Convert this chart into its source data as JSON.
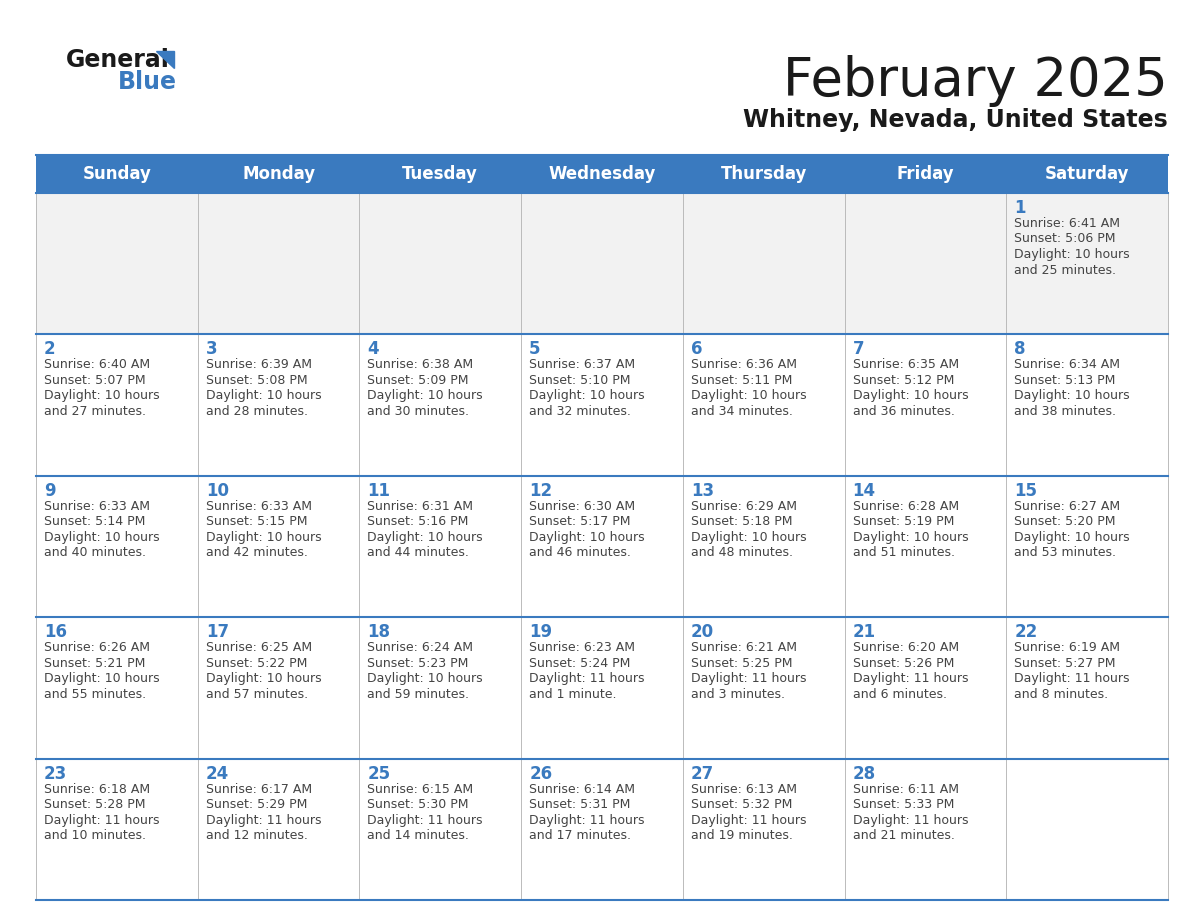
{
  "title": "February 2025",
  "subtitle": "Whitney, Nevada, United States",
  "header_color": "#3a7abf",
  "header_text_color": "#ffffff",
  "cell_bg_color": "#ffffff",
  "alt_cell_bg_color": "#f2f2f2",
  "border_color": "#3a7abf",
  "day_headers": [
    "Sunday",
    "Monday",
    "Tuesday",
    "Wednesday",
    "Thursday",
    "Friday",
    "Saturday"
  ],
  "title_color": "#1a1a1a",
  "subtitle_color": "#1a1a1a",
  "day_number_color": "#3a7abf",
  "cell_text_color": "#444444",
  "calendar": [
    [
      null,
      null,
      null,
      null,
      null,
      null,
      {
        "day": "1",
        "sunrise": "6:41 AM",
        "sunset": "5:06 PM",
        "daylight_line1": "10 hours",
        "daylight_line2": "and 25 minutes."
      }
    ],
    [
      {
        "day": "2",
        "sunrise": "6:40 AM",
        "sunset": "5:07 PM",
        "daylight_line1": "10 hours",
        "daylight_line2": "and 27 minutes."
      },
      {
        "day": "3",
        "sunrise": "6:39 AM",
        "sunset": "5:08 PM",
        "daylight_line1": "10 hours",
        "daylight_line2": "and 28 minutes."
      },
      {
        "day": "4",
        "sunrise": "6:38 AM",
        "sunset": "5:09 PM",
        "daylight_line1": "10 hours",
        "daylight_line2": "and 30 minutes."
      },
      {
        "day": "5",
        "sunrise": "6:37 AM",
        "sunset": "5:10 PM",
        "daylight_line1": "10 hours",
        "daylight_line2": "and 32 minutes."
      },
      {
        "day": "6",
        "sunrise": "6:36 AM",
        "sunset": "5:11 PM",
        "daylight_line1": "10 hours",
        "daylight_line2": "and 34 minutes."
      },
      {
        "day": "7",
        "sunrise": "6:35 AM",
        "sunset": "5:12 PM",
        "daylight_line1": "10 hours",
        "daylight_line2": "and 36 minutes."
      },
      {
        "day": "8",
        "sunrise": "6:34 AM",
        "sunset": "5:13 PM",
        "daylight_line1": "10 hours",
        "daylight_line2": "and 38 minutes."
      }
    ],
    [
      {
        "day": "9",
        "sunrise": "6:33 AM",
        "sunset": "5:14 PM",
        "daylight_line1": "10 hours",
        "daylight_line2": "and 40 minutes."
      },
      {
        "day": "10",
        "sunrise": "6:33 AM",
        "sunset": "5:15 PM",
        "daylight_line1": "10 hours",
        "daylight_line2": "and 42 minutes."
      },
      {
        "day": "11",
        "sunrise": "6:31 AM",
        "sunset": "5:16 PM",
        "daylight_line1": "10 hours",
        "daylight_line2": "and 44 minutes."
      },
      {
        "day": "12",
        "sunrise": "6:30 AM",
        "sunset": "5:17 PM",
        "daylight_line1": "10 hours",
        "daylight_line2": "and 46 minutes."
      },
      {
        "day": "13",
        "sunrise": "6:29 AM",
        "sunset": "5:18 PM",
        "daylight_line1": "10 hours",
        "daylight_line2": "and 48 minutes."
      },
      {
        "day": "14",
        "sunrise": "6:28 AM",
        "sunset": "5:19 PM",
        "daylight_line1": "10 hours",
        "daylight_line2": "and 51 minutes."
      },
      {
        "day": "15",
        "sunrise": "6:27 AM",
        "sunset": "5:20 PM",
        "daylight_line1": "10 hours",
        "daylight_line2": "and 53 minutes."
      }
    ],
    [
      {
        "day": "16",
        "sunrise": "6:26 AM",
        "sunset": "5:21 PM",
        "daylight_line1": "10 hours",
        "daylight_line2": "and 55 minutes."
      },
      {
        "day": "17",
        "sunrise": "6:25 AM",
        "sunset": "5:22 PM",
        "daylight_line1": "10 hours",
        "daylight_line2": "and 57 minutes."
      },
      {
        "day": "18",
        "sunrise": "6:24 AM",
        "sunset": "5:23 PM",
        "daylight_line1": "10 hours",
        "daylight_line2": "and 59 minutes."
      },
      {
        "day": "19",
        "sunrise": "6:23 AM",
        "sunset": "5:24 PM",
        "daylight_line1": "11 hours",
        "daylight_line2": "and 1 minute."
      },
      {
        "day": "20",
        "sunrise": "6:21 AM",
        "sunset": "5:25 PM",
        "daylight_line1": "11 hours",
        "daylight_line2": "and 3 minutes."
      },
      {
        "day": "21",
        "sunrise": "6:20 AM",
        "sunset": "5:26 PM",
        "daylight_line1": "11 hours",
        "daylight_line2": "and 6 minutes."
      },
      {
        "day": "22",
        "sunrise": "6:19 AM",
        "sunset": "5:27 PM",
        "daylight_line1": "11 hours",
        "daylight_line2": "and 8 minutes."
      }
    ],
    [
      {
        "day": "23",
        "sunrise": "6:18 AM",
        "sunset": "5:28 PM",
        "daylight_line1": "11 hours",
        "daylight_line2": "and 10 minutes."
      },
      {
        "day": "24",
        "sunrise": "6:17 AM",
        "sunset": "5:29 PM",
        "daylight_line1": "11 hours",
        "daylight_line2": "and 12 minutes."
      },
      {
        "day": "25",
        "sunrise": "6:15 AM",
        "sunset": "5:30 PM",
        "daylight_line1": "11 hours",
        "daylight_line2": "and 14 minutes."
      },
      {
        "day": "26",
        "sunrise": "6:14 AM",
        "sunset": "5:31 PM",
        "daylight_line1": "11 hours",
        "daylight_line2": "and 17 minutes."
      },
      {
        "day": "27",
        "sunrise": "6:13 AM",
        "sunset": "5:32 PM",
        "daylight_line1": "11 hours",
        "daylight_line2": "and 19 minutes."
      },
      {
        "day": "28",
        "sunrise": "6:11 AM",
        "sunset": "5:33 PM",
        "daylight_line1": "11 hours",
        "daylight_line2": "and 21 minutes."
      },
      null
    ]
  ],
  "fig_width": 11.88,
  "fig_height": 9.18,
  "dpi": 100
}
